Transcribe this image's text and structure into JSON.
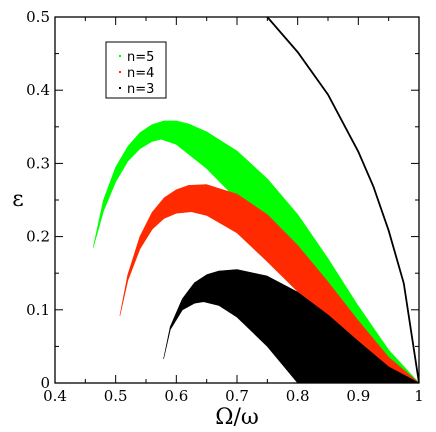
{
  "chart_data": {
    "type": "area",
    "title": "",
    "xlabel": "Ω/ω",
    "ylabel": "ε",
    "xlim": [
      0.4,
      1.0
    ],
    "ylim": [
      0,
      0.5
    ],
    "x_ticks": [
      "0.4",
      "0.5",
      "0.6",
      "0.7",
      "0.8",
      "0.9",
      "1"
    ],
    "y_ticks": [
      "0",
      "0.1",
      "0.2",
      "0.3",
      "0.4",
      "0.5"
    ],
    "grid": false,
    "legend_position": "top-left",
    "series": [
      {
        "name": "n=5",
        "color": "#00ff00",
        "upper": [
          [
            0.463,
            0.185
          ],
          [
            0.48,
            0.25
          ],
          [
            0.5,
            0.295
          ],
          [
            0.52,
            0.323
          ],
          [
            0.54,
            0.342
          ],
          [
            0.56,
            0.353
          ],
          [
            0.58,
            0.358
          ],
          [
            0.6,
            0.358
          ],
          [
            0.62,
            0.354
          ],
          [
            0.65,
            0.343
          ],
          [
            0.7,
            0.317
          ],
          [
            0.75,
            0.279
          ],
          [
            0.8,
            0.23
          ],
          [
            0.85,
            0.17
          ],
          [
            0.9,
            0.105
          ],
          [
            0.95,
            0.045
          ],
          [
            1.0,
            0.0
          ]
        ],
        "lower": [
          [
            0.463,
            0.185
          ],
          [
            0.48,
            0.235
          ],
          [
            0.5,
            0.275
          ],
          [
            0.52,
            0.303
          ],
          [
            0.54,
            0.32
          ],
          [
            0.56,
            0.33
          ],
          [
            0.575,
            0.333
          ],
          [
            0.6,
            0.326
          ],
          [
            0.65,
            0.293
          ],
          [
            0.7,
            0.251
          ],
          [
            0.75,
            0.202
          ],
          [
            0.8,
            0.15
          ],
          [
            0.85,
            0.098
          ],
          [
            0.9,
            0.055
          ],
          [
            0.95,
            0.02
          ],
          [
            1.0,
            0.0
          ]
        ]
      },
      {
        "name": "n=4",
        "color": "#ff2a00",
        "upper": [
          [
            0.507,
            0.092
          ],
          [
            0.52,
            0.148
          ],
          [
            0.54,
            0.2
          ],
          [
            0.56,
            0.233
          ],
          [
            0.58,
            0.253
          ],
          [
            0.6,
            0.264
          ],
          [
            0.62,
            0.27
          ],
          [
            0.65,
            0.271
          ],
          [
            0.7,
            0.258
          ],
          [
            0.75,
            0.23
          ],
          [
            0.8,
            0.188
          ],
          [
            0.85,
            0.138
          ],
          [
            0.9,
            0.085
          ],
          [
            0.95,
            0.035
          ],
          [
            1.0,
            0.0
          ]
        ],
        "lower": [
          [
            0.507,
            0.092
          ],
          [
            0.52,
            0.14
          ],
          [
            0.54,
            0.183
          ],
          [
            0.56,
            0.21
          ],
          [
            0.58,
            0.225
          ],
          [
            0.6,
            0.232
          ],
          [
            0.625,
            0.234
          ],
          [
            0.65,
            0.229
          ],
          [
            0.7,
            0.205
          ],
          [
            0.75,
            0.166
          ],
          [
            0.8,
            0.125
          ],
          [
            0.85,
            0.085
          ],
          [
            0.9,
            0.05
          ],
          [
            0.95,
            0.02
          ],
          [
            1.0,
            0.0
          ]
        ]
      },
      {
        "name": "n=3",
        "color": "#000000",
        "upper": [
          [
            0.579,
            0.033
          ],
          [
            0.59,
            0.077
          ],
          [
            0.61,
            0.115
          ],
          [
            0.63,
            0.137
          ],
          [
            0.65,
            0.148
          ],
          [
            0.67,
            0.153
          ],
          [
            0.7,
            0.155
          ],
          [
            0.75,
            0.146
          ],
          [
            0.8,
            0.124
          ],
          [
            0.85,
            0.093
          ],
          [
            0.9,
            0.057
          ],
          [
            0.95,
            0.022
          ],
          [
            1.0,
            0.0
          ]
        ],
        "lower": [
          [
            0.579,
            0.033
          ],
          [
            0.59,
            0.073
          ],
          [
            0.61,
            0.1
          ],
          [
            0.63,
            0.109
          ],
          [
            0.645,
            0.111
          ],
          [
            0.67,
            0.106
          ],
          [
            0.7,
            0.09
          ],
          [
            0.75,
            0.05
          ],
          [
            0.8,
            0.0
          ]
        ]
      }
    ],
    "outer_curve": {
      "color": "#000000",
      "points": [
        [
          0.75,
          0.5
        ],
        [
          0.8,
          0.452
        ],
        [
          0.85,
          0.394
        ],
        [
          0.9,
          0.316
        ],
        [
          0.925,
          0.268
        ],
        [
          0.95,
          0.208
        ],
        [
          0.975,
          0.136
        ],
        [
          1.0,
          0.0
        ]
      ]
    }
  }
}
